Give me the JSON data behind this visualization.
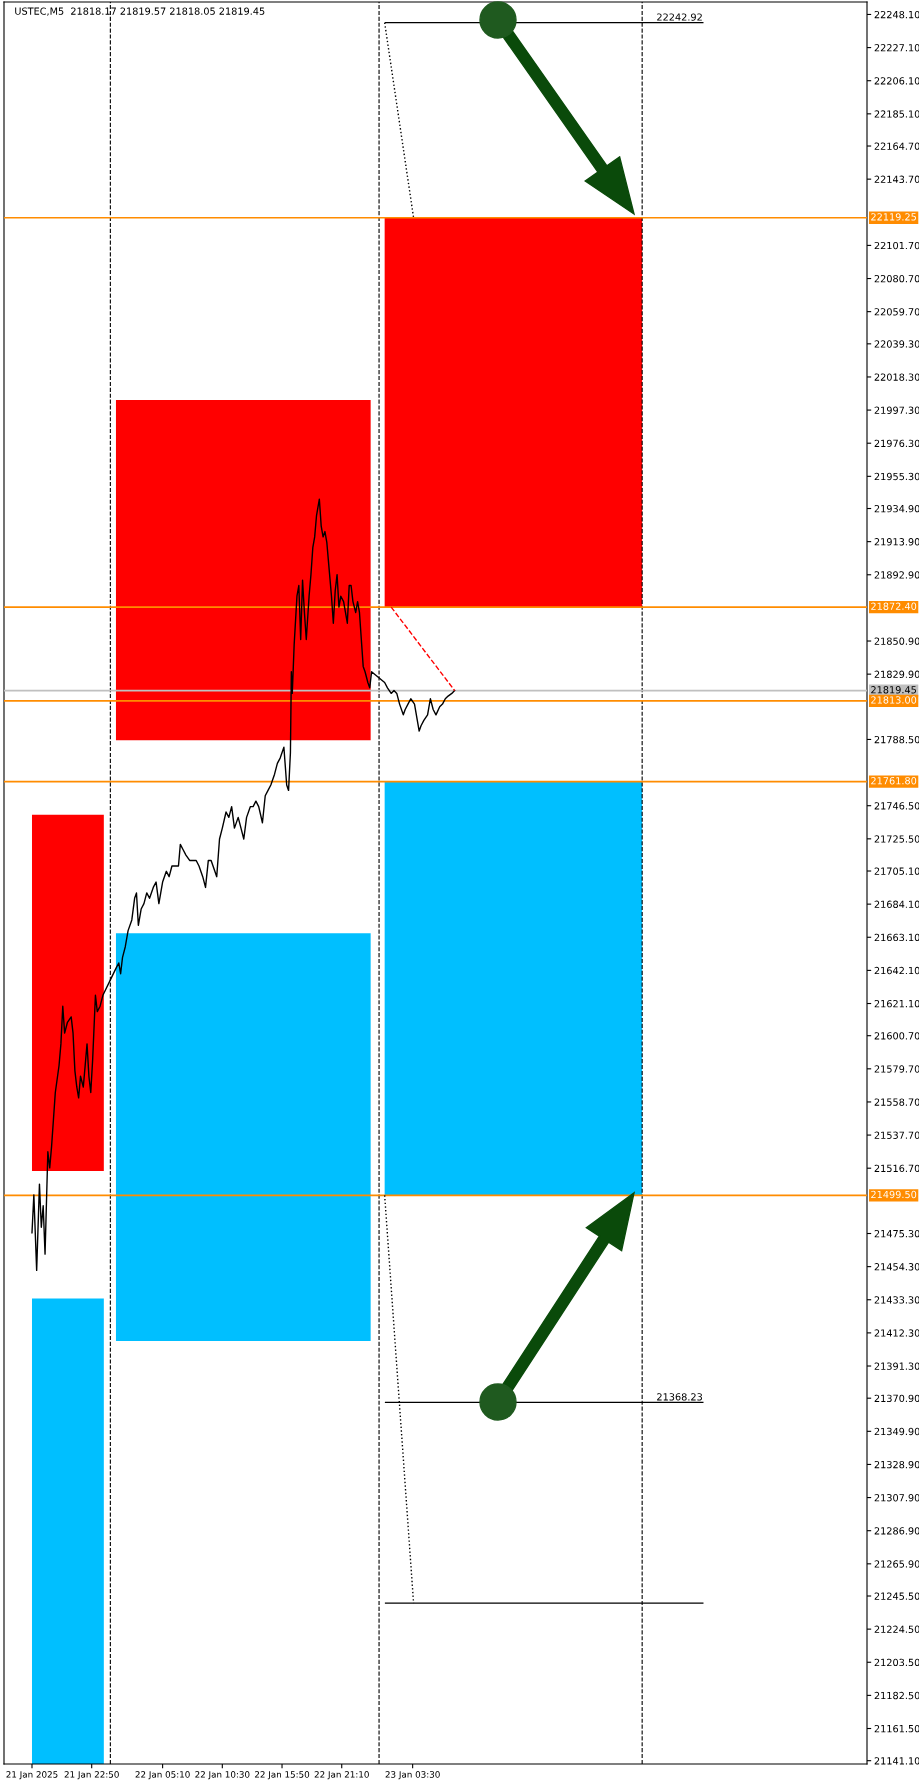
{
  "chart_data": {
    "type": "line",
    "title": "USTEC,M5  21818.17 21819.57 21818.05 21819.45",
    "xlim": [
      "2025-01-21T15:00",
      "2025-01-24T20:05"
    ],
    "ylim": [
      21139,
      22256
    ],
    "xticks": [
      {
        "value": "2025-01-21T17:30",
        "label": "21 Jan 2025"
      },
      {
        "value": "2025-01-21T22:50",
        "label": "21 Jan 22:50"
      },
      {
        "value": "2025-01-22T05:10",
        "label": "22 Jan 05:10"
      },
      {
        "value": "2025-01-22T10:30",
        "label": "22 Jan 10:30"
      },
      {
        "value": "2025-01-22T15:50",
        "label": "22 Jan 15:50"
      },
      {
        "value": "2025-01-22T21:10",
        "label": "22 Jan 21:10"
      },
      {
        "value": "2025-01-23T03:30",
        "label": "23 Jan 03:30"
      }
    ],
    "yticks": [
      {
        "value": 22248.1,
        "label": "22248.10"
      },
      {
        "value": 22227.1,
        "label": "22227.10"
      },
      {
        "value": 22206.1,
        "label": "22206.10"
      },
      {
        "value": 22185.1,
        "label": "22185.10"
      },
      {
        "value": 22164.7,
        "label": "22164.70"
      },
      {
        "value": 22143.7,
        "label": "22143.70"
      },
      {
        "value": 22101.7,
        "label": "22101.70"
      },
      {
        "value": 22080.7,
        "label": "22080.70"
      },
      {
        "value": 22059.7,
        "label": "22059.70"
      },
      {
        "value": 22039.3,
        "label": "22039.30"
      },
      {
        "value": 22018.3,
        "label": "22018.30"
      },
      {
        "value": 21997.3,
        "label": "21997.30"
      },
      {
        "value": 21976.3,
        "label": "21976.30"
      },
      {
        "value": 21955.3,
        "label": "21955.30"
      },
      {
        "value": 21934.9,
        "label": "21934.90"
      },
      {
        "value": 21913.9,
        "label": "21913.90"
      },
      {
        "value": 21892.9,
        "label": "21892.90"
      },
      {
        "value": 21850.9,
        "label": "21850.90"
      },
      {
        "value": 21829.9,
        "label": "21829.90"
      },
      {
        "value": 21788.5,
        "label": "21788.50"
      },
      {
        "value": 21746.5,
        "label": "21746.50"
      },
      {
        "value": 21725.5,
        "label": "21725.50"
      },
      {
        "value": 21705.1,
        "label": "21705.10"
      },
      {
        "value": 21684.1,
        "label": "21684.10"
      },
      {
        "value": 21663.1,
        "label": "21663.10"
      },
      {
        "value": 21642.1,
        "label": "21642.10"
      },
      {
        "value": 21621.1,
        "label": "21621.10"
      },
      {
        "value": 21600.7,
        "label": "21600.70"
      },
      {
        "value": 21579.7,
        "label": "21579.70"
      },
      {
        "value": 21558.7,
        "label": "21558.70"
      },
      {
        "value": 21537.7,
        "label": "21537.70"
      },
      {
        "value": 21516.7,
        "label": "21516.70"
      },
      {
        "value": 21475.3,
        "label": "21475.30"
      },
      {
        "value": 21454.3,
        "label": "21454.30"
      },
      {
        "value": 21433.3,
        "label": "21433.30"
      },
      {
        "value": 21412.3,
        "label": "21412.30"
      },
      {
        "value": 21391.3,
        "label": "21391.30"
      },
      {
        "value": 21370.9,
        "label": "21370.90"
      },
      {
        "value": 21349.9,
        "label": "21349.90"
      },
      {
        "value": 21328.9,
        "label": "21328.90"
      },
      {
        "value": 21307.9,
        "label": "21307.90"
      },
      {
        "value": 21286.9,
        "label": "21286.90"
      },
      {
        "value": 21265.9,
        "label": "21265.90"
      },
      {
        "value": 21245.5,
        "label": "21245.50"
      },
      {
        "value": 21224.5,
        "label": "21224.50"
      },
      {
        "value": 21203.5,
        "label": "21203.50"
      },
      {
        "value": 21182.5,
        "label": "21182.50"
      },
      {
        "value": 21161.5,
        "label": "21161.50"
      },
      {
        "value": 21141.1,
        "label": "21141.10"
      }
    ],
    "grid": false,
    "series": [
      {
        "type": "line",
        "color": "#ff0000",
        "x": [
          "2025-01-21T17:30",
          "2025-01-21T23:55"
        ],
        "values": [
          null,
          null
        ],
        "upper": [
          21740.7,
          21740.7
        ],
        "lower": [
          21514.9,
          21514.9
        ]
      },
      {
        "type": "line",
        "color": "#00bfff",
        "x": [
          "2025-01-21T17:30",
          "2025-01-21T23:55"
        ],
        "values": [
          null,
          null
        ],
        "upper": [
          21434.1,
          21434.1
        ],
        "lower": [
          21139,
          21139
        ]
      },
      {
        "type": "line",
        "color": "#ff0000",
        "x": [
          "2025-01-22T01:00",
          "2025-01-22T23:45"
        ],
        "values": [
          null,
          null
        ],
        "upper": [
          22003.7,
          22003.7
        ],
        "lower": [
          21788.0,
          21788.0
        ]
      },
      {
        "type": "line",
        "color": "#00bfff",
        "x": [
          "2025-01-22T01:00",
          "2025-01-22T23:45"
        ],
        "values": [
          null,
          null
        ],
        "upper": [
          21665.7,
          21665.7
        ],
        "lower": [
          21407.1,
          21407.1
        ]
      },
      {
        "type": "line",
        "color": "#ff0000",
        "x": [
          "2025-01-23T01:00",
          "2025-01-24T00:00"
        ],
        "values": [
          null,
          null
        ],
        "upper": [
          22119.25,
          22119.25
        ],
        "lower": [
          21872.4,
          21872.4
        ]
      },
      {
        "type": "line",
        "color": "#00bfff",
        "x": [
          "2025-01-23T01:00",
          "2025-01-24T00:00"
        ],
        "values": [
          null,
          null
        ],
        "upper": [
          21761.8,
          21761.8
        ],
        "lower": [
          21499.5,
          21499.5
        ]
      },
      {
        "color": "#000000",
        "x": [
          "2025-01-21T17:30",
          "2025-01-21T17:40",
          "2025-01-21T17:55",
          "2025-01-21T18:10",
          "2025-01-21T18:20",
          "2025-01-21T18:30",
          "2025-01-21T18:40",
          "2025-01-21T18:55",
          "2025-01-21T19:05",
          "2025-01-21T19:15",
          "2025-01-21T19:25",
          "2025-01-21T19:35",
          "2025-01-21T19:55",
          "2025-01-21T20:05",
          "2025-01-21T20:15",
          "2025-01-21T20:25",
          "2025-01-21T20:40",
          "2025-01-21T21:00",
          "2025-01-21T21:10",
          "2025-01-21T21:20",
          "2025-01-21T21:30",
          "2025-01-21T21:40",
          "2025-01-21T21:50",
          "2025-01-21T22:05",
          "2025-01-21T22:15",
          "2025-01-21T22:25",
          "2025-01-21T22:35",
          "2025-01-21T22:45",
          "2025-01-21T22:55",
          "2025-01-21T23:10",
          "2025-01-21T23:20",
          "2025-01-21T23:35",
          "2025-01-21T23:50",
          "2025-01-22T01:00",
          "2025-01-22T01:15",
          "2025-01-22T01:25",
          "2025-01-22T01:35",
          "2025-01-22T01:50",
          "2025-01-22T02:05",
          "2025-01-22T02:25",
          "2025-01-22T02:40",
          "2025-01-22T02:50",
          "2025-01-22T03:00",
          "2025-01-22T03:15",
          "2025-01-22T03:30",
          "2025-01-22T03:45",
          "2025-01-22T04:00",
          "2025-01-22T04:20",
          "2025-01-22T04:35",
          "2025-01-22T04:50",
          "2025-01-22T05:00",
          "2025-01-22T05:10",
          "2025-01-22T05:30",
          "2025-01-22T05:45",
          "2025-01-22T06:00",
          "2025-01-22T06:15",
          "2025-01-22T06:35",
          "2025-01-22T06:45",
          "2025-01-22T07:00",
          "2025-01-22T07:15",
          "2025-01-22T07:35",
          "2025-01-22T07:55",
          "2025-01-22T08:10",
          "2025-01-22T08:25",
          "2025-01-22T08:45",
          "2025-01-22T09:00",
          "2025-01-22T09:15",
          "2025-01-22T09:30",
          "2025-01-22T09:50",
          "2025-01-22T10:00",
          "2025-01-22T10:15",
          "2025-01-22T10:30",
          "2025-01-22T10:50",
          "2025-01-22T11:05",
          "2025-01-22T11:20",
          "2025-01-22T11:35",
          "2025-01-22T11:55",
          "2025-01-22T12:10",
          "2025-01-22T12:25",
          "2025-01-22T12:40",
          "2025-01-22T13:00",
          "2025-01-22T13:15",
          "2025-01-22T13:30",
          "2025-01-22T13:45",
          "2025-01-22T14:05",
          "2025-01-22T14:20",
          "2025-01-22T14:35",
          "2025-01-22T14:50",
          "2025-01-22T15:10",
          "2025-01-22T15:25",
          "2025-01-22T15:40",
          "2025-01-22T16:00",
          "2025-01-22T16:15",
          "2025-01-22T16:25",
          "2025-01-22T16:35",
          "2025-01-22T16:40",
          "2025-01-22T16:45",
          "2025-01-22T16:55",
          "2025-01-22T17:10",
          "2025-01-22T17:20",
          "2025-01-22T17:30",
          "2025-01-22T17:40",
          "2025-01-22T17:50",
          "2025-01-22T18:00",
          "2025-01-22T18:15",
          "2025-01-22T18:25",
          "2025-01-22T18:35",
          "2025-01-22T18:45",
          "2025-01-22T18:55",
          "2025-01-22T19:10",
          "2025-01-22T19:20",
          "2025-01-22T19:30",
          "2025-01-22T19:40",
          "2025-01-22T19:50",
          "2025-01-22T20:00",
          "2025-01-22T20:15",
          "2025-01-22T20:25",
          "2025-01-22T20:35",
          "2025-01-22T20:45",
          "2025-01-22T20:55",
          "2025-01-22T21:05",
          "2025-01-22T21:20",
          "2025-01-22T21:30",
          "2025-01-22T21:40",
          "2025-01-22T21:50",
          "2025-01-22T22:00",
          "2025-01-22T22:10",
          "2025-01-22T22:25",
          "2025-01-22T22:35",
          "2025-01-22T22:45",
          "2025-01-22T22:55",
          "2025-01-22T23:05",
          "2025-01-22T23:15",
          "2025-01-22T23:30",
          "2025-01-22T23:40",
          "2025-01-22T23:50",
          "2025-01-23T01:00",
          "2025-01-23T01:15",
          "2025-01-23T01:35",
          "2025-01-23T01:50",
          "2025-01-23T02:05",
          "2025-01-23T02:20",
          "2025-01-23T02:40",
          "2025-01-23T02:50",
          "2025-01-23T03:05",
          "2025-01-23T03:20",
          "2025-01-23T03:40",
          "2025-01-23T03:55",
          "2025-01-23T04:05",
          "2025-01-23T04:15",
          "2025-01-23T04:30",
          "2025-01-23T04:50",
          "2025-01-23T05:05",
          "2025-01-23T05:20",
          "2025-01-23T05:35",
          "2025-01-23T05:55",
          "2025-01-23T06:10",
          "2025-01-23T06:25",
          "2025-01-23T06:40",
          "2025-01-23T07:00",
          "2025-01-23T07:15"
        ],
        "values": [
          21475.8,
          21499.8,
          21451.9,
          21506.6,
          21479.3,
          21492.9,
          21462.2,
          21527.1,
          21516.9,
          21530.5,
          21547.6,
          21564.7,
          21581.8,
          21595.5,
          21619.4,
          21602.3,
          21609.2,
          21612.6,
          21602.3,
          21578.4,
          21568.2,
          21561.3,
          21575.0,
          21568.2,
          21581.8,
          21595.5,
          21575.0,
          21564.7,
          21585.3,
          21626.3,
          21616.0,
          21619.4,
          21626.3,
          21643.4,
          21646.8,
          21640.0,
          21650.2,
          21657.1,
          21667.3,
          21674.1,
          21687.8,
          21691.2,
          21670.7,
          21681.0,
          21684.4,
          21691.2,
          21687.8,
          21694.7,
          21698.1,
          21684.4,
          21691.2,
          21698.1,
          21704.9,
          21701.5,
          21708.3,
          21708.3,
          21708.3,
          21722.0,
          21718.6,
          21715.2,
          21711.8,
          21711.8,
          21711.8,
          21708.3,
          21701.5,
          21694.7,
          21711.8,
          21711.8,
          21704.9,
          21701.5,
          21725.4,
          21732.3,
          21742.5,
          21739.1,
          21745.9,
          21732.3,
          21739.1,
          21732.3,
          21725.4,
          21739.1,
          21745.9,
          21745.9,
          21749.4,
          21745.9,
          21735.7,
          21752.8,
          21756.2,
          21759.6,
          21766.5,
          21773.3,
          21776.7,
          21783.6,
          21759.6,
          21756.2,
          21780.1,
          21831.4,
          21817.7,
          21848.5,
          21879.3,
          21886.1,
          21851.9,
          21889.5,
          21869.0,
          21851.9,
          21879.3,
          21893.0,
          21910.1,
          21916.9,
          21930.6,
          21940.8,
          21923.7,
          21916.9,
          21920.3,
          21913.5,
          21899.8,
          21879.3,
          21862.2,
          21882.7,
          21893.0,
          21872.4,
          21879.3,
          21875.9,
          21869.0,
          21862.2,
          21886.1,
          21886.1,
          21875.9,
          21869.0,
          21875.9,
          21869.0,
          21851.9,
          21834.8,
          21831.4,
          21824.6,
          21821.2,
          21831.4,
          21824.6,
          21821.2,
          21817.7,
          21819.5,
          21817.7,
          21810.9,
          21804.1,
          21807.5,
          21810.9,
          21814.3,
          21810.9,
          21800.6,
          21793.8,
          21797.2,
          21800.6,
          21804.1,
          21814.3,
          21807.5,
          21804.1,
          21809.2,
          21810.9,
          21814.3,
          21816.0,
          21817.7,
          21819.5
        ]
      },
      {
        "type": "line",
        "color": "#ff0000",
        "line_style": "dashed",
        "x": [
          "2025-01-23T01:35",
          "2025-01-23T07:15"
        ],
        "values": [
          21872.4,
          21819.5
        ]
      },
      {
        "type": "line",
        "color": "#000000",
        "line_style": "dotted",
        "x": [
          "2025-01-23T01:00",
          "2025-01-23T03:35"
        ],
        "values": [
          22242.92,
          22119.25
        ]
      },
      {
        "type": "line",
        "color": "#000000",
        "line_style": "dotted",
        "x": [
          "2025-01-23T01:00",
          "2025-01-23T03:35"
        ],
        "values": [
          21499.5,
          21241.0
        ]
      },
      {
        "type": "line",
        "color": "#000000",
        "x": [
          "2025-01-23T01:05",
          "2025-01-24T05:25"
        ],
        "values": [
          22242.92,
          22242.92
        ]
      },
      {
        "type": "line",
        "color": "#000000",
        "x": [
          "2025-01-23T01:05",
          "2025-01-24T05:25"
        ],
        "values": [
          21368.23,
          21368.23
        ]
      },
      {
        "type": "line",
        "color": "#000000",
        "x": [
          "2025-01-23T01:05",
          "2025-01-24T05:25"
        ],
        "values": [
          21241.0,
          21241.0
        ]
      }
    ],
    "ref_lines": [
      {
        "axis": "y",
        "value": 22119.25,
        "label": "22119.25",
        "color": "#ff8c00"
      },
      {
        "axis": "y",
        "value": 21872.4,
        "label": "21872.40",
        "color": "#ff8c00"
      },
      {
        "axis": "y",
        "value": 21819.45,
        "label": "21819.45",
        "color": "#c0c0c0"
      },
      {
        "axis": "y",
        "value": 21813.0,
        "label": "21813.00",
        "color": "#ff8c00"
      },
      {
        "axis": "y",
        "value": 21761.8,
        "label": "21761.80",
        "color": "#ff8c00"
      },
      {
        "axis": "y",
        "value": 21499.5,
        "label": "21499.50",
        "color": "#ff8c00"
      },
      {
        "axis": "x",
        "value": "2025-01-22T00:30",
        "color": "#000000",
        "line_style": "dashed"
      },
      {
        "axis": "x",
        "value": "2025-01-23T00:30",
        "color": "#000000",
        "line_style": "dashed"
      },
      {
        "axis": "x",
        "value": "2025-01-24T00:00",
        "color": "#000000",
        "line_style": "dashed"
      }
    ],
    "annotations": [
      {
        "text": "22242.92",
        "x": "2025-01-24T05:25",
        "y": 22242.92
      },
      {
        "text": "21368.23",
        "x": "2025-01-24T05:25",
        "y": 21368.23
      }
    ]
  }
}
